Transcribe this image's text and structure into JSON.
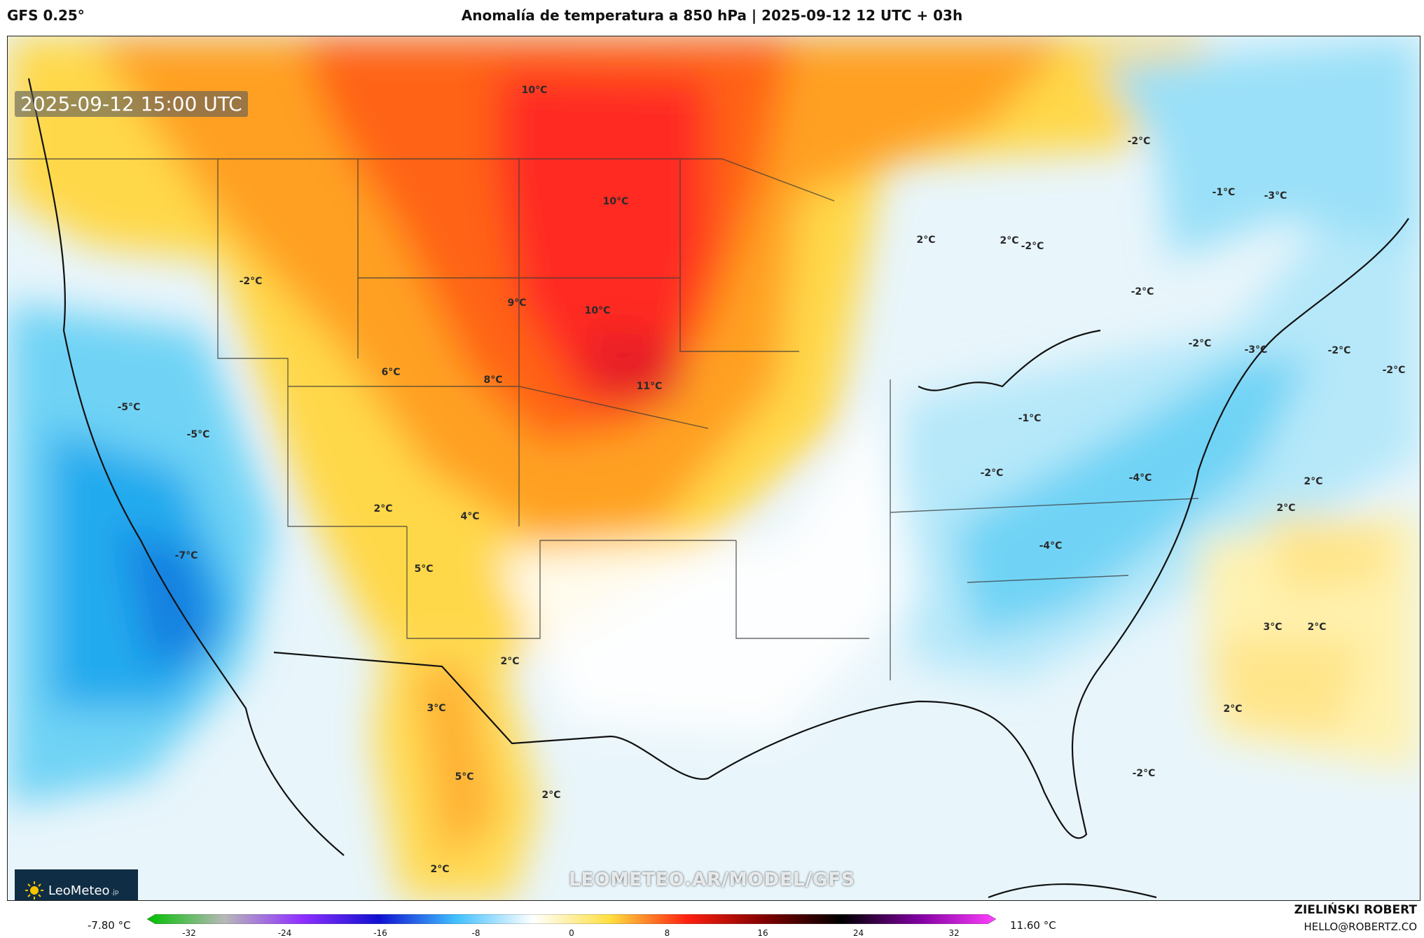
{
  "header": {
    "model": "GFS 0.25°",
    "title": "Anomalía de temperatura a 850 hPa | 2025-09-12 12 UTC + 03h"
  },
  "map": {
    "timestamp": "2025-09-12 15:00 UTC",
    "watermark": "LEOMETEO.AR/MODEL/GFS",
    "logo_text": "LeoMeteo",
    "logo_suffix": ".jp",
    "labels": [
      {
        "text": "10°C"
      },
      {
        "text": "10°C"
      },
      {
        "text": "9°C"
      },
      {
        "text": "10°C"
      },
      {
        "text": "11°C"
      },
      {
        "text": "8°C"
      },
      {
        "text": "6°C"
      },
      {
        "text": "-2°C"
      },
      {
        "text": "-5°C"
      },
      {
        "text": "-5°C"
      },
      {
        "text": "-7°C"
      },
      {
        "text": "2°C"
      },
      {
        "text": "4°C"
      },
      {
        "text": "5°C"
      },
      {
        "text": "2°C"
      },
      {
        "text": "3°C"
      },
      {
        "text": "5°C"
      },
      {
        "text": "2°C"
      },
      {
        "text": "2°C"
      },
      {
        "text": "2°C"
      },
      {
        "text": "2°C"
      },
      {
        "text": "-2°C"
      },
      {
        "text": "-2°C"
      },
      {
        "text": "-1°C"
      },
      {
        "text": "-3°C"
      },
      {
        "text": "-2°C"
      },
      {
        "text": "-2°C"
      },
      {
        "text": "-3°C"
      },
      {
        "text": "-2°C"
      },
      {
        "text": "-2°C"
      },
      {
        "text": "-1°C"
      },
      {
        "text": "-2°C"
      },
      {
        "text": "-4°C"
      },
      {
        "text": "-4°C"
      },
      {
        "text": "2°C"
      },
      {
        "text": "2°C"
      },
      {
        "text": "3°C"
      },
      {
        "text": "2°C"
      },
      {
        "text": "2°C"
      },
      {
        "text": "-2°C"
      }
    ]
  },
  "colorbar": {
    "min_label": "-7.80 °C",
    "max_label": "11.60 °C",
    "ticks": [
      "-32",
      "-24",
      "-16",
      "-8",
      "0",
      "8",
      "16",
      "24",
      "32"
    ],
    "range": [
      -32,
      32
    ],
    "stops": [
      "#00c000",
      "#b8b8b8",
      "#9030ff",
      "#1010d0",
      "#40c0ff",
      "#ffffff",
      "#ffe040",
      "#ff2010",
      "#800000",
      "#000000",
      "#8000a0",
      "#ff40ff"
    ]
  },
  "footer": {
    "author": "ZIELIŃSKI ROBERT",
    "email": "HELLO@ROBERTZ.CO"
  }
}
